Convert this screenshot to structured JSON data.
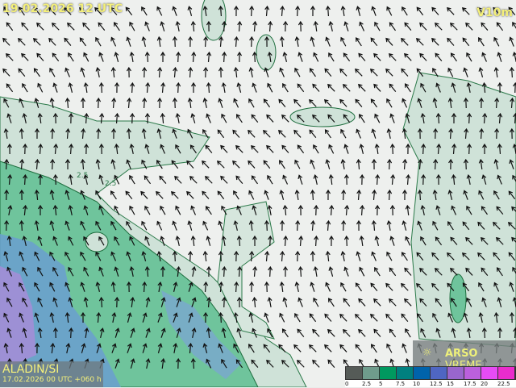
{
  "header": {
    "valid_time": "19.02.2026 12 UTC",
    "variable": "V10m"
  },
  "model": {
    "name": "ALADIN/SI",
    "run": "17.02.2026 00 UTC +060 h"
  },
  "brand": {
    "bold": "ARSO",
    "light": "VREME",
    "icon": "weather-logo-icon"
  },
  "legend": {
    "ticks": [
      "0",
      "2.5",
      "5",
      "7.5",
      "10",
      "12.5",
      "15",
      "17.5",
      "20",
      "22.5"
    ],
    "colors": [
      "#555b57",
      "#6f9c8c",
      "#00995f",
      "#00807f",
      "#0063ab",
      "#4f66c2",
      "#9966cc",
      "#bb60dd",
      "#e64cf5",
      "#ea2ccc"
    ]
  },
  "contour_label": "2.5"
}
